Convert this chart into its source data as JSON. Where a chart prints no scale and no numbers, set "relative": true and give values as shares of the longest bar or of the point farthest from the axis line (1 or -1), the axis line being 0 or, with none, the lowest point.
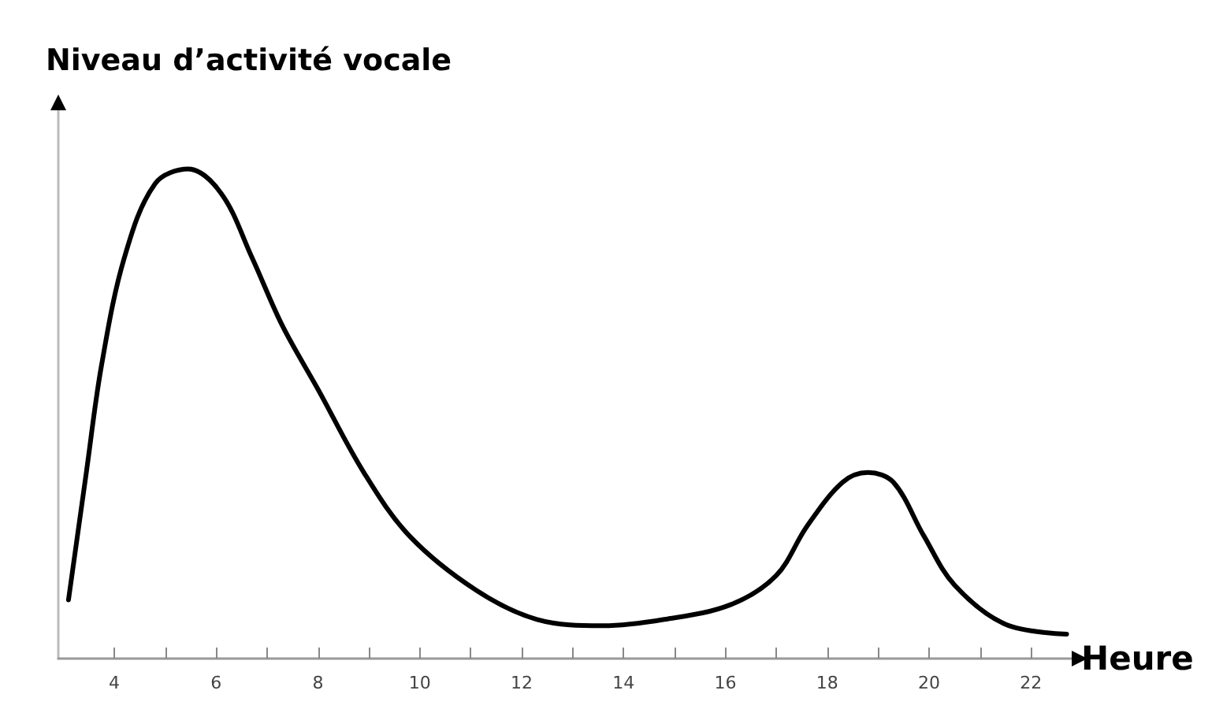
{
  "chart_data": {
    "type": "line",
    "relative": true,
    "ylabel": "Niveau d’activité vocale",
    "xlabel": "Heure",
    "x": [
      3.1,
      3.45,
      3.75,
      4.2,
      4.8,
      5.45,
      6.1,
      6.7,
      7.3,
      8.0,
      8.9,
      9.8,
      11.1,
      12.3,
      13.6,
      14.8,
      16.1,
      17.0,
      17.6,
      18.3,
      18.8,
      19.3,
      19.9,
      20.5,
      21.5,
      22.7
    ],
    "series": [
      {
        "color": "#000000",
        "values": [
          0.12,
          0.38,
          0.6,
          0.82,
          0.97,
          1.0,
          0.95,
          0.82,
          0.68,
          0.55,
          0.38,
          0.25,
          0.14,
          0.08,
          0.067,
          0.08,
          0.11,
          0.17,
          0.27,
          0.36,
          0.38,
          0.36,
          0.25,
          0.15,
          0.07,
          0.05
        ]
      }
    ],
    "xlim": [
      2.9,
      22.8
    ],
    "xticks": [
      4,
      {
        "value": 5,
        "label": null
      },
      6,
      {
        "value": 7,
        "label": null
      },
      8,
      {
        "value": 9,
        "label": null
      },
      10,
      {
        "value": 11,
        "label": null
      },
      12,
      {
        "value": 13,
        "label": null
      },
      14,
      {
        "value": 15,
        "label": null
      },
      16,
      {
        "value": 17,
        "label": null
      },
      18,
      {
        "value": 19,
        "label": null
      },
      20,
      {
        "value": 21,
        "label": null
      },
      22
    ],
    "grid": false,
    "marker": "none",
    "line_style": "solid"
  }
}
